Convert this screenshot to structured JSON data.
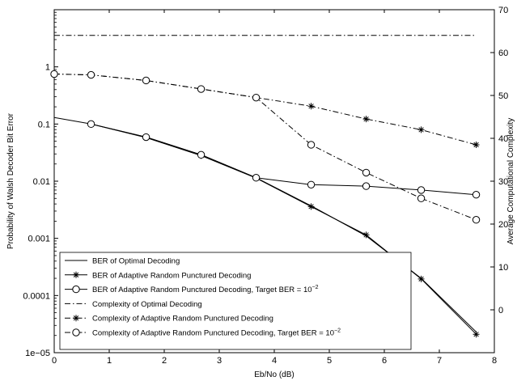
{
  "chart_data": {
    "type": "line",
    "xlabel": "Eb/No (dB)",
    "ylabel_left": "Probability of Walsh Decoder Bit Error",
    "ylabel_right": "Average Computational Complexity",
    "xlim": [
      0,
      8
    ],
    "ylim_left": [
      1e-05,
      10
    ],
    "yscale_left": "log",
    "ylim_right": [
      -10,
      70
    ],
    "x_ticks": [
      "0",
      "1",
      "2",
      "3",
      "4",
      "5",
      "6",
      "7",
      "8"
    ],
    "y_left_ticks": [
      "1e−05",
      "0.0001",
      "0.001",
      "0.01",
      "0.1",
      "1"
    ],
    "y_right_ticks": [
      "0",
      "10",
      "20",
      "30",
      "40",
      "50",
      "60",
      "70"
    ],
    "legend_placement": "bottom-left",
    "series": [
      {
        "name": "BER of Optimal Decoding",
        "axis": "left",
        "line": "solid",
        "marker": "none",
        "x": [
          0,
          0.67,
          1.67,
          2.67,
          3.67,
          4.67,
          5.67,
          6.67,
          7.67
        ],
        "y": [
          0.13,
          0.1,
          0.059,
          0.029,
          0.0115,
          0.0037,
          0.0011,
          0.0002,
          2.3e-05
        ]
      },
      {
        "name": "BER of Adaptive Random Punctured Decoding",
        "axis": "left",
        "line": "solid",
        "marker": "star",
        "x": [
          0.67,
          1.67,
          2.67,
          3.67,
          4.67,
          5.67,
          6.67,
          7.67
        ],
        "y": [
          0.1,
          0.058,
          0.028,
          0.0113,
          0.0036,
          0.00115,
          0.000195,
          2.1e-05
        ]
      },
      {
        "name": "BER of Adaptive Random Punctured Decoding, Target BER = 10",
        "name_sup": "−2",
        "axis": "left",
        "line": "solid",
        "marker": "circle",
        "x": [
          0.67,
          1.67,
          2.67,
          3.67,
          4.67,
          5.67,
          6.67,
          7.67
        ],
        "y": [
          0.1,
          0.059,
          0.029,
          0.0115,
          0.0087,
          0.0082,
          0.007,
          0.0058
        ]
      },
      {
        "name": "Complexity of Optimal Decoding",
        "axis": "right",
        "line": "dashdot",
        "marker": "none",
        "x": [
          0,
          7.67
        ],
        "y": [
          64,
          64
        ]
      },
      {
        "name": "Complexity of Adaptive Random Punctured Decoding",
        "axis": "right",
        "line": "dashdot",
        "marker": "star",
        "x": [
          0,
          0.67,
          1.67,
          2.67,
          3.67,
          4.67,
          5.67,
          6.67,
          7.67
        ],
        "y": [
          55,
          54.8,
          53.5,
          51.5,
          49.5,
          47.5,
          44.5,
          42,
          38.5
        ]
      },
      {
        "name": "Complexity of Adaptive Random Punctured Decoding, Target BER = 10",
        "name_sup": "−2",
        "axis": "right",
        "line": "dashdot",
        "marker": "circle",
        "x": [
          0,
          0.67,
          1.67,
          2.67,
          3.67,
          4.67,
          5.67,
          6.67,
          7.67
        ],
        "y": [
          55,
          54.8,
          53.5,
          51.5,
          49.5,
          38.5,
          32,
          26,
          21
        ]
      }
    ]
  }
}
